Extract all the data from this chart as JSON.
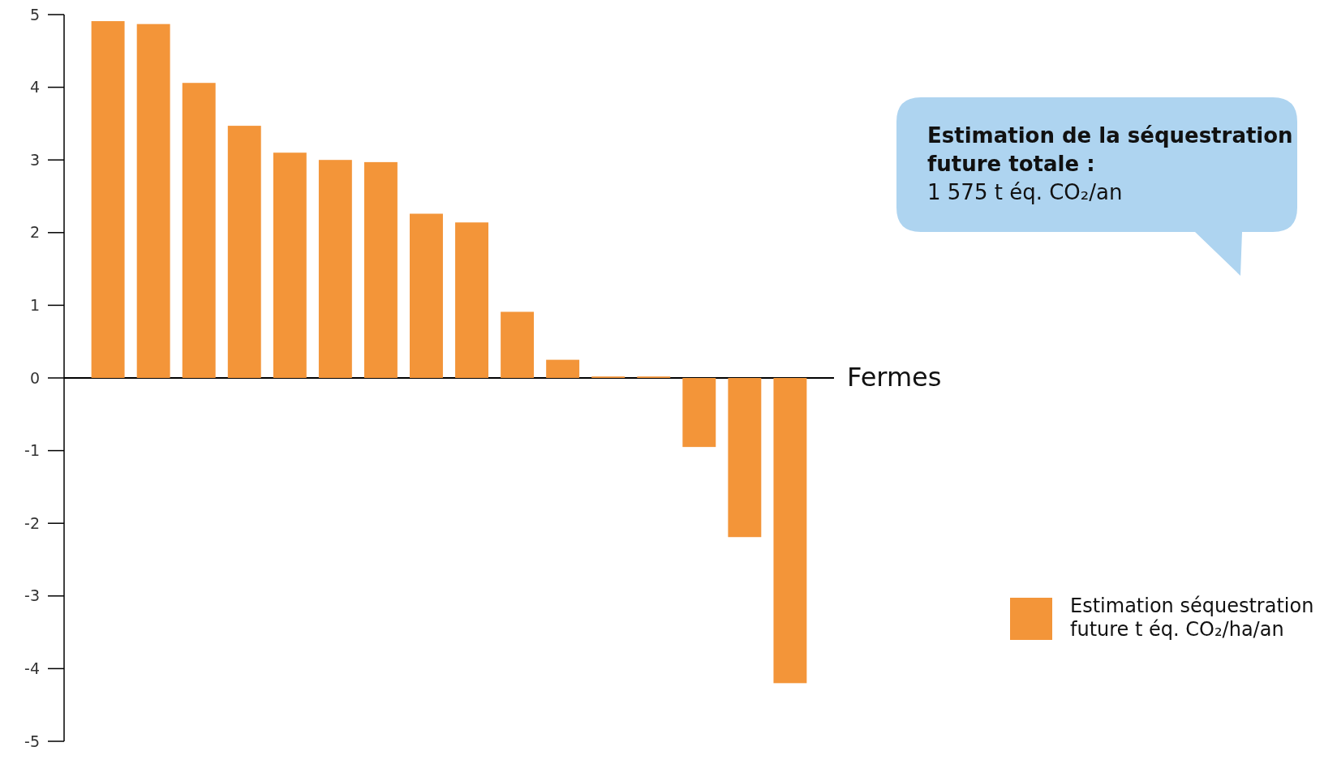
{
  "chart_data": {
    "type": "bar",
    "xlabel": "Fermes",
    "categories": [
      null,
      null,
      null,
      null,
      null,
      null,
      null,
      null,
      null,
      null,
      null,
      null,
      null,
      null,
      null,
      null
    ],
    "series": [
      {
        "name": "Estimation séquestration future t éq. CO₂/ha/an",
        "color": "#f39539",
        "values": [
          4.91,
          4.87,
          4.06,
          3.47,
          3.1,
          3.0,
          2.97,
          2.26,
          2.14,
          0.91,
          0.25,
          0.02,
          0.02,
          -0.95,
          -2.19,
          -4.2
        ]
      }
    ],
    "ylim": [
      -5,
      5
    ],
    "yticks": [
      -5,
      -4,
      -3,
      -2,
      -1,
      0,
      1,
      2,
      3,
      4,
      5
    ],
    "legend": "bottom right",
    "annotations": [
      "Estimation de la séquestration future totale :",
      "1 575 t éq. CO₂/an"
    ]
  }
}
